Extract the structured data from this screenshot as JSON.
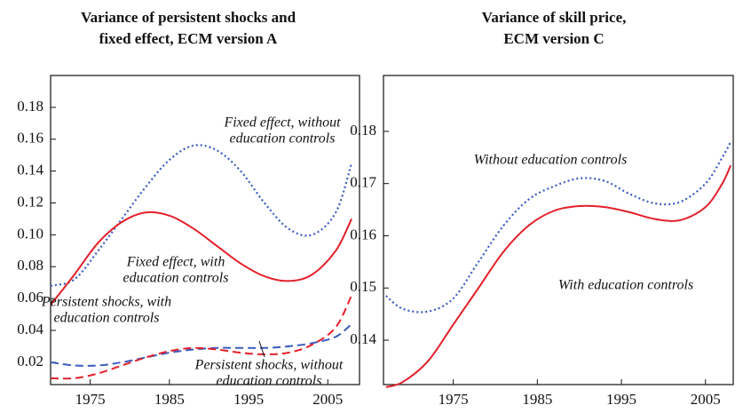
{
  "chart_data": [
    {
      "type": "line",
      "title": [
        "Variance of persistent shocks and",
        "fixed effect, ECM version A"
      ],
      "x": [
        1970,
        1973,
        1976,
        1979,
        1982,
        1985,
        1988,
        1991,
        1994,
        1997,
        2000,
        2003,
        2006,
        2008
      ],
      "xlim": [
        1970,
        2009
      ],
      "xticks": [
        1975,
        1985,
        1995,
        2005
      ],
      "ylim": [
        0.006,
        0.2
      ],
      "yticks": [
        0.02,
        0.04,
        0.06,
        0.08,
        {
          "value": 0.1,
          "label": "0.10"
        },
        0.12,
        0.14,
        0.16,
        0.18
      ],
      "series": [
        {
          "name": [
            "Fixed effect, without",
            "education controls"
          ],
          "color": "#3a5bc0",
          "style": "dotted",
          "values": [
            0.068,
            0.072,
            0.09,
            0.11,
            0.13,
            0.147,
            0.156,
            0.153,
            0.14,
            0.12,
            0.104,
            0.1,
            0.114,
            0.145
          ]
        },
        {
          "name": [
            "Fixed effect, with",
            "education controls"
          ],
          "color": "#e3202a",
          "style": "solid",
          "values": [
            0.056,
            0.075,
            0.095,
            0.108,
            0.114,
            0.112,
            0.104,
            0.093,
            0.082,
            0.074,
            0.071,
            0.075,
            0.09,
            0.11
          ]
        },
        {
          "name": [
            "Persistent shocks, with",
            "education controls"
          ],
          "color": "#3a5bc0",
          "style": "dashed",
          "values": [
            0.02,
            0.018,
            0.018,
            0.02,
            0.023,
            0.026,
            0.028,
            0.029,
            0.029,
            0.029,
            0.03,
            0.032,
            0.036,
            0.044
          ]
        },
        {
          "name": [
            "Persistent shocks, without",
            "education controls"
          ],
          "color": "#e3202a",
          "style": "dashed",
          "values": [
            0.01,
            0.01,
            0.013,
            0.018,
            0.023,
            0.027,
            0.029,
            0.028,
            0.026,
            0.025,
            0.026,
            0.031,
            0.042,
            0.062
          ]
        }
      ]
    },
    {
      "type": "line",
      "title": [
        "Variance of skill price,",
        "ECM version C"
      ],
      "x": [
        1967,
        1969,
        1972,
        1975,
        1978,
        1981,
        1984,
        1987,
        1990,
        1993,
        1996,
        1999,
        2002,
        2005,
        2007,
        2008
      ],
      "xlim": [
        1966.7,
        2008.3
      ],
      "xticks": [
        1975,
        1985,
        1995,
        2005
      ],
      "ylim": [
        0.1315,
        0.1907
      ],
      "yticks": [
        0.14,
        0.15,
        0.16,
        0.17,
        0.18
      ],
      "series": [
        {
          "name": [
            "Without education controls"
          ],
          "color": "#3a5bc0",
          "style": "dotted",
          "values": [
            0.1485,
            0.146,
            0.1455,
            0.148,
            0.155,
            0.162,
            0.167,
            0.1695,
            0.171,
            0.1705,
            0.168,
            0.1662,
            0.1665,
            0.17,
            0.175,
            0.178
          ]
        },
        {
          "name": [
            "With education controls"
          ],
          "color": "#e3202a",
          "style": "solid",
          "values": [
            0.131,
            0.132,
            0.136,
            0.143,
            0.15,
            0.157,
            0.162,
            0.1648,
            0.1657,
            0.1655,
            0.1645,
            0.1632,
            0.163,
            0.1655,
            0.17,
            0.1735
          ]
        }
      ]
    }
  ]
}
